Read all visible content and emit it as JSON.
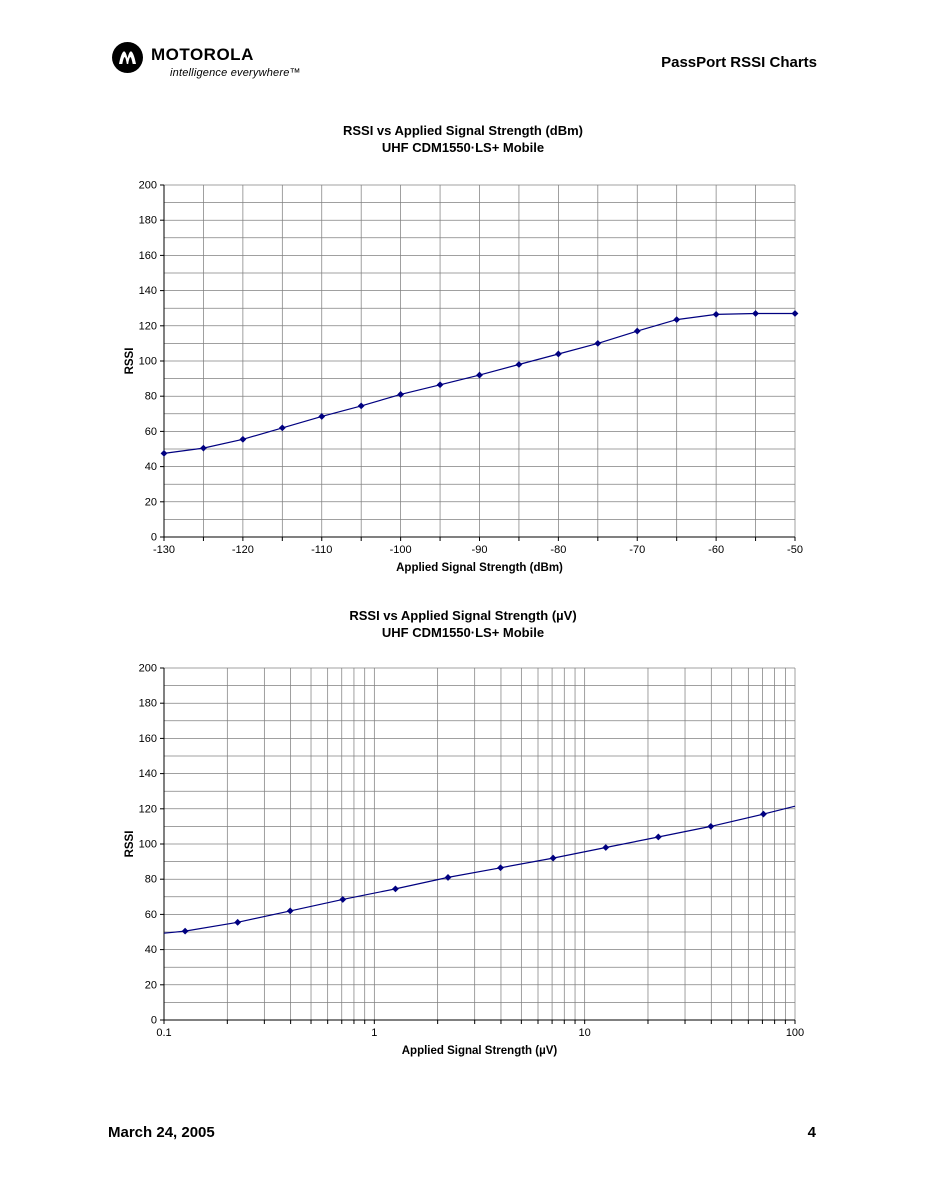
{
  "header": {
    "brand": "MOTOROLA",
    "tagline": "intelligence everywhere™",
    "title": "PassPort RSSI Charts"
  },
  "footer": {
    "date": "March 24, 2005",
    "page_number": "4"
  },
  "chart_data": [
    {
      "type": "line",
      "title": "RSSI vs Applied Signal Strength (dBm)",
      "subtitle": "UHF CDM1550·LS+ Mobile",
      "xlabel": "Applied Signal Strength (dBm)",
      "ylabel": "RSSI",
      "xscale": "linear",
      "xlim": [
        -130,
        -50
      ],
      "ylim": [
        0,
        200
      ],
      "x_grid_step": 5,
      "y_grid_step": 10,
      "y_label_step": 20,
      "x_tick_labels": [
        {
          "v": -130,
          "label": "-130"
        },
        {
          "v": -120,
          "label": "-120"
        },
        {
          "v": -110,
          "label": "-110"
        },
        {
          "v": -100,
          "label": "-100"
        },
        {
          "v": -90,
          "label": "-90"
        },
        {
          "v": -80,
          "label": "-80"
        },
        {
          "v": -70,
          "label": "-70"
        },
        {
          "v": -60,
          "label": "-60"
        },
        {
          "v": -50,
          "label": "-50"
        }
      ],
      "legend": "none",
      "grid": true,
      "line_color": "#000080",
      "grid_color": "#808080",
      "points": [
        [
          -130,
          47.5,
          1
        ],
        [
          -125,
          50.5,
          1
        ],
        [
          -120,
          55.5,
          1
        ],
        [
          -115,
          62,
          1
        ],
        [
          -110,
          68.5,
          1
        ],
        [
          -105,
          74.5,
          1
        ],
        [
          -100,
          81,
          1
        ],
        [
          -95,
          86.5,
          1
        ],
        [
          -90,
          92,
          1
        ],
        [
          -85,
          98,
          1
        ],
        [
          -80,
          104,
          1
        ],
        [
          -75,
          110,
          1
        ],
        [
          -70,
          117,
          1
        ],
        [
          -65,
          123.5,
          1
        ],
        [
          -60,
          126.5,
          1
        ],
        [
          -55,
          127,
          1
        ],
        [
          -50,
          127,
          1
        ]
      ]
    },
    {
      "type": "line",
      "title": "RSSI vs Applied Signal Strength (µV)",
      "subtitle": "UHF CDM1550·LS+ Mobile",
      "xlabel": "Applied Signal Strength (µV)",
      "ylabel": "RSSI",
      "xscale": "log",
      "xlim": [
        0.1,
        100
      ],
      "ylim": [
        0,
        200
      ],
      "y_grid_step": 10,
      "y_label_step": 20,
      "x_tick_labels": [
        {
          "v": 0.1,
          "label": "0.1"
        },
        {
          "v": 1,
          "label": "1"
        },
        {
          "v": 10,
          "label": "10"
        },
        {
          "v": 100,
          "label": "100"
        }
      ],
      "legend": "none",
      "grid": true,
      "line_color": "#000080",
      "grid_color": "#808080",
      "points": [
        [
          0.1,
          49.3,
          0
        ],
        [
          0.126,
          50.5,
          1
        ],
        [
          0.224,
          55.5,
          1
        ],
        [
          0.398,
          62,
          1
        ],
        [
          0.708,
          68.5,
          1
        ],
        [
          1.26,
          74.5,
          1
        ],
        [
          2.24,
          81,
          1
        ],
        [
          3.98,
          86.5,
          1
        ],
        [
          7.08,
          92,
          1
        ],
        [
          12.6,
          98,
          1
        ],
        [
          22.4,
          104,
          1
        ],
        [
          39.8,
          110,
          1
        ],
        [
          70.8,
          117,
          1
        ],
        [
          100,
          121.5,
          0
        ]
      ]
    }
  ]
}
